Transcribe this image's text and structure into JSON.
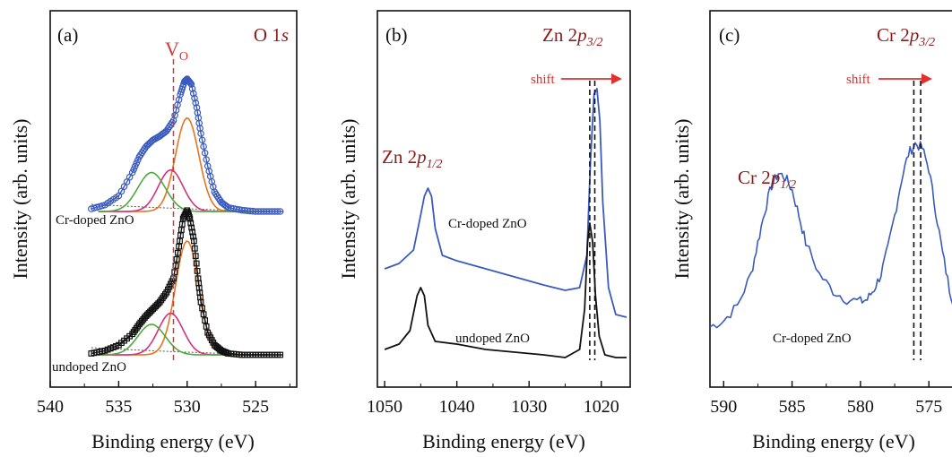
{
  "chart_data": [
    {
      "type": "line",
      "panel_label": "(a)",
      "title": {
        "main": "O 1",
        "italic": "s"
      },
      "xlabel": "Binding energy (eV)",
      "ylabel": "Intensity (arb. units)",
      "xlim": [
        540,
        522
      ],
      "xticks": [
        540,
        535,
        530,
        525
      ],
      "marker_label": {
        "main": "V",
        "sub": "O"
      },
      "marker_x": 531,
      "series": [
        {
          "label": "Cr-doped ZnO",
          "color": "#3a5bbd",
          "x": [
            537,
            536,
            535,
            534,
            533.5,
            533,
            532.5,
            532,
            531.5,
            531,
            530.5,
            530.2,
            530,
            529.7,
            529.3,
            529,
            528.5,
            528,
            527.5,
            527,
            526,
            525,
            524,
            523
          ],
          "y": [
            0.02,
            0.05,
            0.12,
            0.3,
            0.42,
            0.5,
            0.55,
            0.58,
            0.62,
            0.7,
            0.9,
            1.0,
            1.02,
            0.98,
            0.8,
            0.6,
            0.35,
            0.15,
            0.07,
            0.03,
            0.01,
            0.0,
            0.0,
            0.0
          ]
        },
        {
          "label": "undoped ZnO",
          "color": "#111111",
          "x": [
            537,
            536,
            535,
            534,
            533.5,
            533,
            532.5,
            532,
            531.5,
            531,
            530.6,
            530.3,
            530,
            529.8,
            529.5,
            529.2,
            529,
            528.5,
            528,
            527.5,
            527,
            526,
            525,
            524,
            523
          ],
          "y": [
            0.01,
            0.03,
            0.07,
            0.15,
            0.22,
            0.28,
            0.33,
            0.38,
            0.45,
            0.55,
            0.78,
            0.98,
            1.04,
            0.98,
            0.82,
            0.55,
            0.38,
            0.16,
            0.07,
            0.03,
            0.01,
            0.0,
            0.0,
            0.0,
            0.0
          ]
        }
      ],
      "components": [
        {
          "color": "#e8741c",
          "center": 530,
          "width": 0.85,
          "amp": [
            0.72,
            0.82
          ]
        },
        {
          "color": "#d6317d",
          "center": 531.2,
          "width": 0.9,
          "amp": [
            0.32,
            0.3
          ]
        },
        {
          "color": "#4caa3c",
          "center": 532.6,
          "width": 1.0,
          "amp": [
            0.3,
            0.22
          ]
        }
      ]
    },
    {
      "type": "line",
      "panel_label": "(b)",
      "title": {
        "main": "Zn 2",
        "italic": "p",
        "sub": "3/2"
      },
      "peak_label": {
        "main": "Zn 2",
        "italic": "p",
        "sub": "1/2"
      },
      "xlabel": "Binding energy (eV)",
      "ylabel": "Intensity (arb. units)",
      "xlim": [
        1051,
        1016
      ],
      "xticks": [
        1050,
        1040,
        1030,
        1020
      ],
      "shift_label": "shift",
      "marker_x": [
        1021.6,
        1020.9
      ],
      "series": [
        {
          "label": "Cr-doped ZnO",
          "color": "#3a5bbd",
          "x": [
            1050,
            1048,
            1046,
            1045,
            1044.5,
            1044,
            1043.5,
            1043,
            1042,
            1040,
            1036,
            1032,
            1028,
            1025,
            1023,
            1022,
            1021.5,
            1021,
            1020.6,
            1020.2,
            1019.8,
            1019,
            1018,
            1016.5
          ],
          "y": [
            0.35,
            0.37,
            0.42,
            0.55,
            0.62,
            0.65,
            0.62,
            0.5,
            0.4,
            0.38,
            0.35,
            0.32,
            0.29,
            0.27,
            0.28,
            0.4,
            0.75,
            1.0,
            1.02,
            0.9,
            0.6,
            0.28,
            0.18,
            0.17
          ]
        },
        {
          "label": "undoped ZnO",
          "color": "#111111",
          "x": [
            1050,
            1048,
            1046.5,
            1045.5,
            1045,
            1044.5,
            1044,
            1043,
            1040,
            1036,
            1032,
            1028,
            1025,
            1023,
            1022.3,
            1021.9,
            1021.6,
            1021.2,
            1020.8,
            1020.3,
            1019.5,
            1018,
            1016.5
          ],
          "y": [
            0.05,
            0.07,
            0.12,
            0.25,
            0.28,
            0.25,
            0.14,
            0.08,
            0.07,
            0.05,
            0.04,
            0.03,
            0.02,
            0.05,
            0.2,
            0.45,
            0.52,
            0.45,
            0.25,
            0.1,
            0.03,
            0.02,
            0.02
          ]
        }
      ]
    },
    {
      "type": "line",
      "panel_label": "(c)",
      "title": {
        "main": "Cr 2",
        "italic": "p",
        "sub": "3/2"
      },
      "peak_label": {
        "main": "Cr 2",
        "italic": "p",
        "sub": "1/2"
      },
      "xlabel": "Binding energy (eV)",
      "ylabel": "Intensity (arb. units)",
      "xlim": [
        591,
        572
      ],
      "xticks": [
        590,
        585,
        580,
        575
      ],
      "shift_label": "shift",
      "marker_x": [
        576.1,
        575.6
      ],
      "series": [
        {
          "label": "Cr-doped ZnO",
          "color": "#3a5bbd",
          "x": [
            591,
            590,
            589,
            588,
            587.5,
            587,
            586.5,
            586,
            585.5,
            585,
            584.5,
            584,
            583,
            582,
            581,
            580,
            579.5,
            579,
            578.5,
            578,
            577.5,
            577,
            576.5,
            576,
            575.5,
            575,
            574.5,
            574,
            573.5,
            573,
            572.5,
            572
          ],
          "y": [
            0.15,
            0.18,
            0.25,
            0.4,
            0.55,
            0.7,
            0.82,
            0.88,
            0.86,
            0.8,
            0.68,
            0.55,
            0.4,
            0.32,
            0.28,
            0.27,
            0.28,
            0.33,
            0.4,
            0.52,
            0.68,
            0.85,
            0.97,
            1.02,
            1.0,
            0.9,
            0.7,
            0.5,
            0.33,
            0.22,
            0.18,
            0.15
          ]
        }
      ]
    }
  ]
}
